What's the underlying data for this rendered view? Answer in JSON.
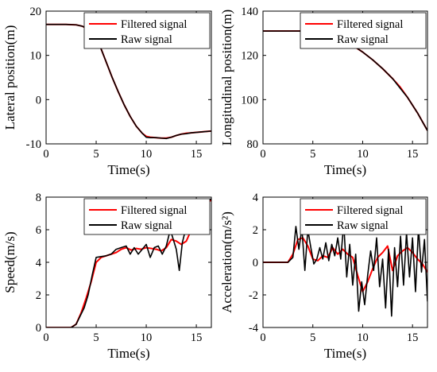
{
  "chart_data": [
    {
      "type": "line",
      "xlabel": "Time(s)",
      "ylabel": "Lateral position(m)",
      "xlim": [
        0,
        16.5
      ],
      "ylim": [
        -10,
        20
      ],
      "xticks": [
        "0",
        "5",
        "10",
        "15"
      ],
      "xtick_values": [
        0,
        5,
        10,
        15
      ],
      "yticks": [
        "-10",
        "0",
        "10",
        "20"
      ],
      "ytick_values": [
        -10,
        0,
        10,
        20
      ],
      "grid": false,
      "legend_position": "top-right",
      "series": [
        {
          "name": "Filtered signal",
          "color": "#ff0000",
          "x": [
            0,
            1,
            2,
            3,
            3.6,
            4.2,
            4.8,
            5.4,
            6,
            6.6,
            7.2,
            7.8,
            8.4,
            9,
            9.6,
            10,
            10.4,
            11,
            11.5,
            12,
            12.5,
            13,
            13.5,
            14,
            14.5,
            15,
            15.5,
            16,
            16.5
          ],
          "y": [
            17,
            17,
            17,
            16.9,
            16.6,
            16,
            14.5,
            12,
            8.5,
            5,
            1.8,
            -1.2,
            -3.8,
            -6,
            -7.6,
            -8.3,
            -8.5,
            -8.6,
            -8.7,
            -8.7,
            -8.5,
            -8.1,
            -7.8,
            -7.6,
            -7.5,
            -7.4,
            -7.3,
            -7.2,
            -7.1
          ]
        },
        {
          "name": "Raw signal",
          "color": "#000000",
          "x": [
            0,
            1,
            2,
            3,
            3.6,
            4.2,
            4.8,
            5.4,
            6,
            6.6,
            7.2,
            7.8,
            8.4,
            9,
            9.6,
            10,
            10.4,
            11,
            11.5,
            12,
            12.5,
            13,
            13.5,
            14,
            14.5,
            15,
            15.5,
            16,
            16.5
          ],
          "y": [
            17,
            17,
            17,
            16.9,
            16.6,
            16,
            14.5,
            12,
            8.5,
            5,
            1.8,
            -1.2,
            -3.8,
            -6,
            -7.6,
            -8.5,
            -8.6,
            -8.6,
            -8.7,
            -8.8,
            -8.5,
            -8.1,
            -7.8,
            -7.7,
            -7.5,
            -7.4,
            -7.3,
            -7.2,
            -7.1
          ]
        }
      ]
    },
    {
      "type": "line",
      "xlabel": "Time(s)",
      "ylabel": "Longitudinal position(m)",
      "xlim": [
        0,
        16.5
      ],
      "ylim": [
        80,
        140
      ],
      "xticks": [
        "0",
        "5",
        "10",
        "15"
      ],
      "xtick_values": [
        0,
        5,
        10,
        15
      ],
      "yticks": [
        "80",
        "100",
        "120",
        "140"
      ],
      "ytick_values": [
        80,
        100,
        120,
        140
      ],
      "grid": false,
      "legend_position": "top-right",
      "series": [
        {
          "name": "Filtered signal",
          "color": "#ff0000",
          "x": [
            0,
            1,
            2,
            3,
            4,
            5,
            6,
            7,
            8,
            9,
            10,
            11,
            12,
            13,
            13.7,
            14.5,
            15,
            15.5,
            16,
            16.5
          ],
          "y": [
            131,
            131,
            131,
            131,
            131,
            130.9,
            130.3,
            129,
            127,
            124.5,
            121.5,
            118,
            114,
            109.5,
            106,
            101,
            97.5,
            94,
            90,
            86
          ]
        },
        {
          "name": "Raw signal",
          "color": "#000000",
          "x": [
            0,
            1,
            2,
            3,
            4,
            5,
            6,
            7,
            8,
            9,
            10,
            11,
            12,
            13,
            13.7,
            14.5,
            15,
            15.5,
            16,
            16.5
          ],
          "y": [
            131,
            131,
            131,
            131,
            131,
            130.9,
            130.3,
            129,
            127,
            124.5,
            121.5,
            118,
            114,
            109.5,
            105.5,
            101,
            97.5,
            94,
            90,
            86
          ]
        }
      ]
    },
    {
      "type": "line",
      "xlabel": "Time(s)",
      "ylabel": "Speed(m/s)",
      "xlim": [
        0,
        16.5
      ],
      "ylim": [
        0,
        8
      ],
      "xticks": [
        "0",
        "5",
        "10",
        "15"
      ],
      "xtick_values": [
        0,
        5,
        10,
        15
      ],
      "yticks": [
        "0",
        "2",
        "4",
        "6",
        "8"
      ],
      "ytick_values": [
        0,
        2,
        4,
        6,
        8
      ],
      "grid": false,
      "legend_position": "top-right",
      "series": [
        {
          "name": "Filtered signal",
          "color": "#ff0000",
          "x": [
            0,
            2.5,
            3,
            3.5,
            4,
            4.5,
            5,
            5.5,
            6,
            6.5,
            7,
            7.5,
            8,
            8.5,
            9,
            9.5,
            10,
            10.5,
            11,
            11.5,
            12,
            12.5,
            13,
            13.5,
            14,
            14.5,
            15,
            15.5,
            16,
            16.5
          ],
          "y": [
            0,
            0,
            0.2,
            0.9,
            1.8,
            2.8,
            4.0,
            4.3,
            4.4,
            4.5,
            4.6,
            4.8,
            4.9,
            4.75,
            4.85,
            4.8,
            4.9,
            4.85,
            4.8,
            4.7,
            4.9,
            5.4,
            5.3,
            5.1,
            5.3,
            6.0,
            7.0,
            7.5,
            7.7,
            7.8
          ]
        },
        {
          "name": "Raw signal",
          "color": "#000000",
          "x": [
            0,
            2.5,
            3,
            3.4,
            3.8,
            4.2,
            4.6,
            5,
            5.5,
            6,
            6.5,
            7,
            7.5,
            8,
            8.4,
            8.8,
            9.2,
            9.6,
            10,
            10.4,
            10.8,
            11.2,
            11.6,
            12,
            12.4,
            12.8,
            13,
            13.3,
            13.6,
            14,
            14.5,
            15,
            15.5,
            16,
            16.5
          ],
          "y": [
            0,
            0,
            0.2,
            0.7,
            1.2,
            2.0,
            3.2,
            4.3,
            4.35,
            4.4,
            4.5,
            4.8,
            4.9,
            5.0,
            4.5,
            4.9,
            4.5,
            4.8,
            5.1,
            4.3,
            4.9,
            5.0,
            4.5,
            5.0,
            6.0,
            5.2,
            4.8,
            3.5,
            5.2,
            6.2,
            5.8,
            7.3,
            7.6,
            7.7,
            7.9
          ]
        }
      ]
    },
    {
      "type": "line",
      "xlabel": "Time(s)",
      "ylabel": "Acceleration(m/s²)",
      "xlim": [
        0,
        16.5
      ],
      "ylim": [
        -4,
        4
      ],
      "xticks": [
        "0",
        "5",
        "10",
        "15"
      ],
      "xtick_values": [
        0,
        5,
        10,
        15
      ],
      "yticks": [
        "-4",
        "-2",
        "0",
        "2",
        "4"
      ],
      "ytick_values": [
        -4,
        -2,
        0,
        2,
        4
      ],
      "grid": false,
      "legend_position": "top-right",
      "series": [
        {
          "name": "Filtered signal",
          "color": "#ff0000",
          "x": [
            0,
            2.5,
            3,
            3.5,
            4,
            4.5,
            5,
            5.5,
            6,
            6.5,
            7,
            7.5,
            8,
            8.5,
            9,
            9.5,
            10,
            10.5,
            11,
            11.5,
            12,
            12.5,
            13,
            13.5,
            14,
            14.5,
            15,
            15.5,
            16,
            16.5
          ],
          "y": [
            0,
            0,
            0.5,
            1.4,
            1.5,
            1.0,
            0.2,
            0.1,
            0.4,
            0.3,
            0.9,
            0.5,
            0.8,
            0.5,
            0.3,
            -0.8,
            -1.8,
            -1.2,
            -0.4,
            0.3,
            0.6,
            1.0,
            -0.5,
            0.4,
            0.7,
            0.9,
            0.6,
            0.2,
            -0.1,
            -0.6
          ]
        },
        {
          "name": "Raw signal",
          "color": "#000000",
          "x": [
            0,
            2.5,
            3,
            3.3,
            3.6,
            3.9,
            4.2,
            4.5,
            4.8,
            5.1,
            5.4,
            5.7,
            6,
            6.3,
            6.6,
            6.9,
            7.2,
            7.5,
            7.8,
            8.1,
            8.4,
            8.7,
            9,
            9.3,
            9.6,
            9.9,
            10.2,
            10.5,
            10.8,
            11.1,
            11.4,
            11.7,
            12,
            12.3,
            12.6,
            12.9,
            13.2,
            13.5,
            13.8,
            14.1,
            14.4,
            14.7,
            15,
            15.3,
            15.6,
            15.9,
            16.2,
            16.5
          ],
          "y": [
            0,
            0,
            0.3,
            2.2,
            0.8,
            2.1,
            -0.5,
            2.0,
            0.9,
            -0.1,
            0.2,
            0.9,
            0.2,
            1.2,
            0.1,
            1.1,
            0.4,
            1.5,
            0.2,
            2.4,
            -0.9,
            1.1,
            -1.4,
            0.5,
            -3.0,
            -1.2,
            -2.6,
            -0.8,
            0.7,
            -0.5,
            1.5,
            -1.5,
            0.2,
            -2.8,
            0.8,
            -3.3,
            0.9,
            -1.5,
            1.6,
            -1.4,
            1.8,
            -0.9,
            1.5,
            -1.8,
            2.1,
            -0.6,
            1.4,
            -2.4
          ]
        }
      ]
    }
  ]
}
